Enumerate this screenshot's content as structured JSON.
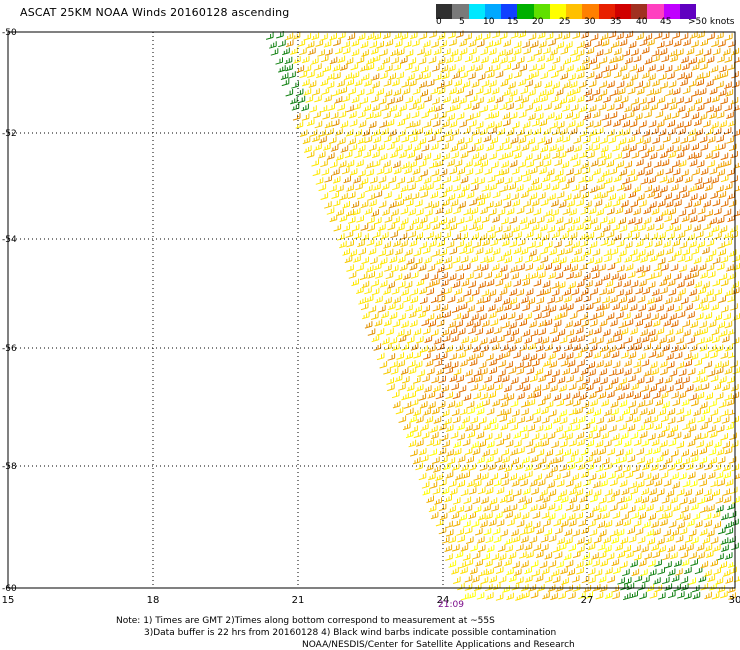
{
  "title": "ASCAT 25KM NOAA Winds 20160128 ascending",
  "colorbar": {
    "labels": [
      "0",
      "5",
      "10",
      "15",
      "20",
      "25",
      "30",
      "35",
      "40",
      "45",
      ">50 knots"
    ],
    "colors": [
      "#303030",
      "#7a7a7a",
      "#00e8ff",
      "#00a8ff",
      "#1040ff",
      "#00b000",
      "#60e000",
      "#ffff00",
      "#ffc000",
      "#ff8000",
      "#e82000",
      "#d00000",
      "#a03020",
      "#ff40c0",
      "#c000ff",
      "#6000c0"
    ]
  },
  "map": {
    "lat_labels": [
      "-50",
      "-52",
      "-54",
      "-56",
      "-58",
      "-60"
    ],
    "lon_labels": [
      "15",
      "18",
      "21",
      "24",
      "27",
      "30"
    ],
    "time_label": "21:09"
  },
  "notes": [
    "Note: 1) Times are GMT 2)Times along bottom correspond to measurement at ~55S",
    "3)Data buffer is 22 hrs from 20160128 4) Black wind barbs indicate possible contamination",
    "NOAA/NESDIS/Center for Satellite Applications and Research"
  ]
}
